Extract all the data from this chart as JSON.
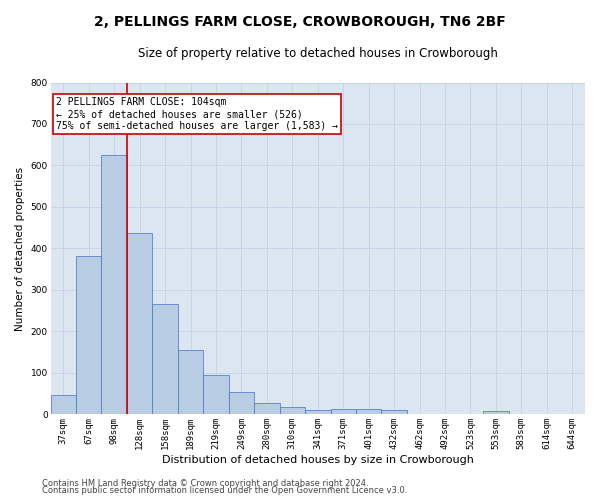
{
  "title": "2, PELLINGS FARM CLOSE, CROWBOROUGH, TN6 2BF",
  "subtitle": "Size of property relative to detached houses in Crowborough",
  "xlabel": "Distribution of detached houses by size in Crowborough",
  "ylabel": "Number of detached properties",
  "footer1": "Contains HM Land Registry data © Crown copyright and database right 2024.",
  "footer2": "Contains public sector information licensed under the Open Government Licence v3.0.",
  "categories": [
    "37sqm",
    "67sqm",
    "98sqm",
    "128sqm",
    "158sqm",
    "189sqm",
    "219sqm",
    "249sqm",
    "280sqm",
    "310sqm",
    "341sqm",
    "371sqm",
    "401sqm",
    "432sqm",
    "462sqm",
    "492sqm",
    "523sqm",
    "553sqm",
    "583sqm",
    "614sqm",
    "644sqm"
  ],
  "values": [
    48,
    382,
    625,
    438,
    265,
    155,
    95,
    55,
    28,
    18,
    10,
    12,
    12,
    10,
    0,
    0,
    0,
    8,
    0,
    0,
    0
  ],
  "bar_color": "#b8cce4",
  "bar_edge_color": "#4472c4",
  "grid_color": "#c8d4e8",
  "background_color": "#dce6f1",
  "vline_x_index": 2,
  "vline_color": "#cc0000",
  "annotation_line1": "2 PELLINGS FARM CLOSE: 104sqm",
  "annotation_line2": "← 25% of detached houses are smaller (526)",
  "annotation_line3": "75% of semi-detached houses are larger (1,583) →",
  "annotation_box_color": "#cc0000",
  "ylim": [
    0,
    800
  ],
  "yticks": [
    0,
    100,
    200,
    300,
    400,
    500,
    600,
    700,
    800
  ],
  "title_fontsize": 10,
  "subtitle_fontsize": 8.5,
  "ylabel_fontsize": 7.5,
  "xlabel_fontsize": 8,
  "tick_fontsize": 6.5,
  "annotation_fontsize": 7,
  "footer_fontsize": 6
}
